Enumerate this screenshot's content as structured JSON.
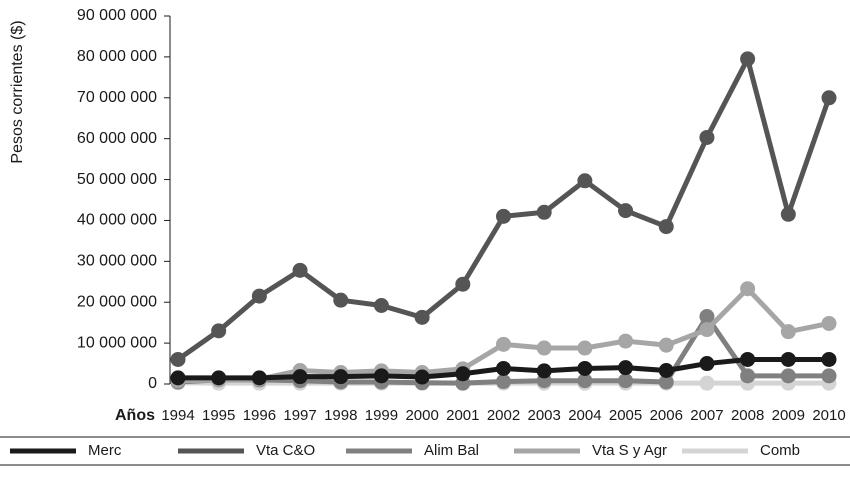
{
  "chart_data": {
    "type": "line",
    "y_label": "Pesos corrientes ($)",
    "x_label": "Años",
    "categories": [
      "1994",
      "1995",
      "1996",
      "1997",
      "1998",
      "1999",
      "2000",
      "2001",
      "2002",
      "2003",
      "2004",
      "2005",
      "2006",
      "2007",
      "2008",
      "2009",
      "2010"
    ],
    "ylim": [
      0,
      90000000
    ],
    "yticks": [
      0,
      {
        "value": 10000000,
        "label": "10 000 000"
      },
      {
        "value": 20000000,
        "label": "20 000 000"
      },
      {
        "value": 30000000,
        "label": "30 000 000"
      },
      {
        "value": 40000000,
        "label": "40 000 000"
      },
      {
        "value": 50000000,
        "label": "50 000 000"
      },
      {
        "value": 60000000,
        "label": "60 000 000"
      },
      {
        "value": 70000000,
        "label": "70 000 000"
      },
      {
        "value": 80000000,
        "label": "80 000 000"
      },
      {
        "value": 90000000,
        "label": "90 000 000"
      }
    ],
    "series": [
      {
        "name": "Merc",
        "color": "#1a1a1a",
        "values": [
          1500000,
          1500000,
          1500000,
          1800000,
          1800000,
          2000000,
          1700000,
          2500000,
          3800000,
          3200000,
          3800000,
          4000000,
          3300000,
          5000000,
          6000000,
          6000000,
          6000000
        ]
      },
      {
        "name": "Vta C&O",
        "color": "#555555",
        "values": [
          6000000,
          13000000,
          21500000,
          27800000,
          20500000,
          19200000,
          16300000,
          24400000,
          41000000,
          42000000,
          49700000,
          42400000,
          38500000,
          60300000,
          79500000,
          41500000,
          70000000
        ]
      },
      {
        "name": "Alim Bal",
        "color": "#808080",
        "values": [
          500000,
          1000000,
          1000000,
          800000,
          500000,
          500000,
          300000,
          200000,
          600000,
          800000,
          800000,
          800000,
          500000,
          16500000,
          2000000,
          2000000,
          2000000
        ]
      },
      {
        "name": "Vta S y Agr",
        "color": "#a6a6a6",
        "values": [
          800000,
          1000000,
          1200000,
          3300000,
          2800000,
          3200000,
          2800000,
          3700000,
          9700000,
          8800000,
          8800000,
          10500000,
          9500000,
          13300000,
          23300000,
          12800000,
          14800000
        ]
      },
      {
        "name": "Comb",
        "color": "#d4d4d4",
        "values": [
          300000,
          200000,
          200000,
          200000,
          200000,
          200000,
          200000,
          200000,
          200000,
          200000,
          200000,
          200000,
          200000,
          200000,
          200000,
          200000,
          200000
        ]
      }
    ]
  }
}
